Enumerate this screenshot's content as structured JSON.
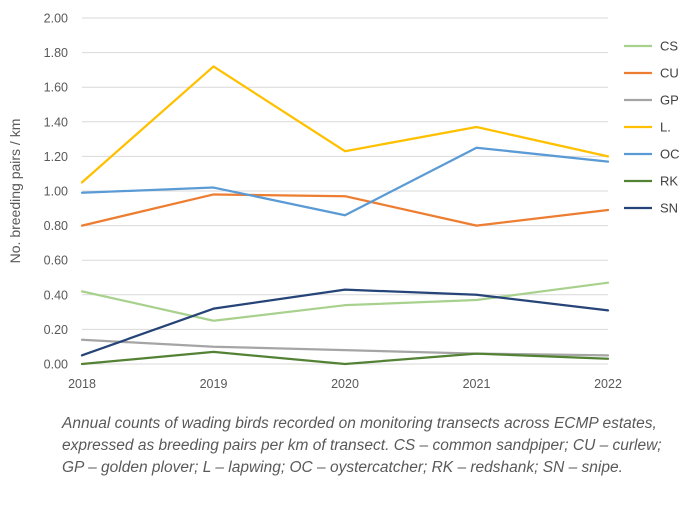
{
  "chart_data": {
    "type": "line",
    "title": "",
    "xlabel": "",
    "ylabel": "No. breeding pairs / km",
    "x": [
      2018,
      2019,
      2020,
      2021,
      2022
    ],
    "x_tick_labels": [
      "2018",
      "2019",
      "2020",
      "2021",
      "2022"
    ],
    "ylim": [
      0,
      2.0
    ],
    "y_ticks": [
      0,
      0.2,
      0.4,
      0.6,
      0.8,
      1.0,
      1.2,
      1.4,
      1.6,
      1.8,
      2.0
    ],
    "y_tick_labels": [
      "0.00",
      "0.20",
      "0.40",
      "0.60",
      "0.80",
      "1.00",
      "1.20",
      "1.40",
      "1.60",
      "1.80",
      "2.00"
    ],
    "grid": "horizontal",
    "legend_position": "right",
    "series": [
      {
        "name": "CS",
        "color": "#a9d18e",
        "values": [
          0.42,
          0.25,
          0.34,
          0.37,
          0.47
        ]
      },
      {
        "name": "CU",
        "color": "#ed7d31",
        "values": [
          0.8,
          0.98,
          0.97,
          0.8,
          0.89
        ]
      },
      {
        "name": "GP",
        "color": "#a5a5a5",
        "values": [
          0.14,
          0.1,
          0.08,
          0.06,
          0.05
        ]
      },
      {
        "name": "L.",
        "color": "#ffc000",
        "values": [
          1.05,
          1.72,
          1.23,
          1.37,
          1.2
        ]
      },
      {
        "name": "OC",
        "color": "#5b9bd5",
        "values": [
          0.99,
          1.02,
          0.86,
          1.25,
          1.17
        ]
      },
      {
        "name": "RK",
        "color": "#548235",
        "values": [
          0.0,
          0.07,
          0.0,
          0.06,
          0.03
        ]
      },
      {
        "name": "SN",
        "color": "#264478",
        "values": [
          0.05,
          0.32,
          0.43,
          0.4,
          0.31
        ]
      }
    ]
  },
  "caption": "Annual counts of wading birds recorded on monitoring transects across ECMP estates, expressed as breeding pairs per km of transect. CS – common sandpiper; CU – curlew; GP – golden plover; L – lapwing; OC – oystercatcher; RK – redshank; SN – snipe."
}
